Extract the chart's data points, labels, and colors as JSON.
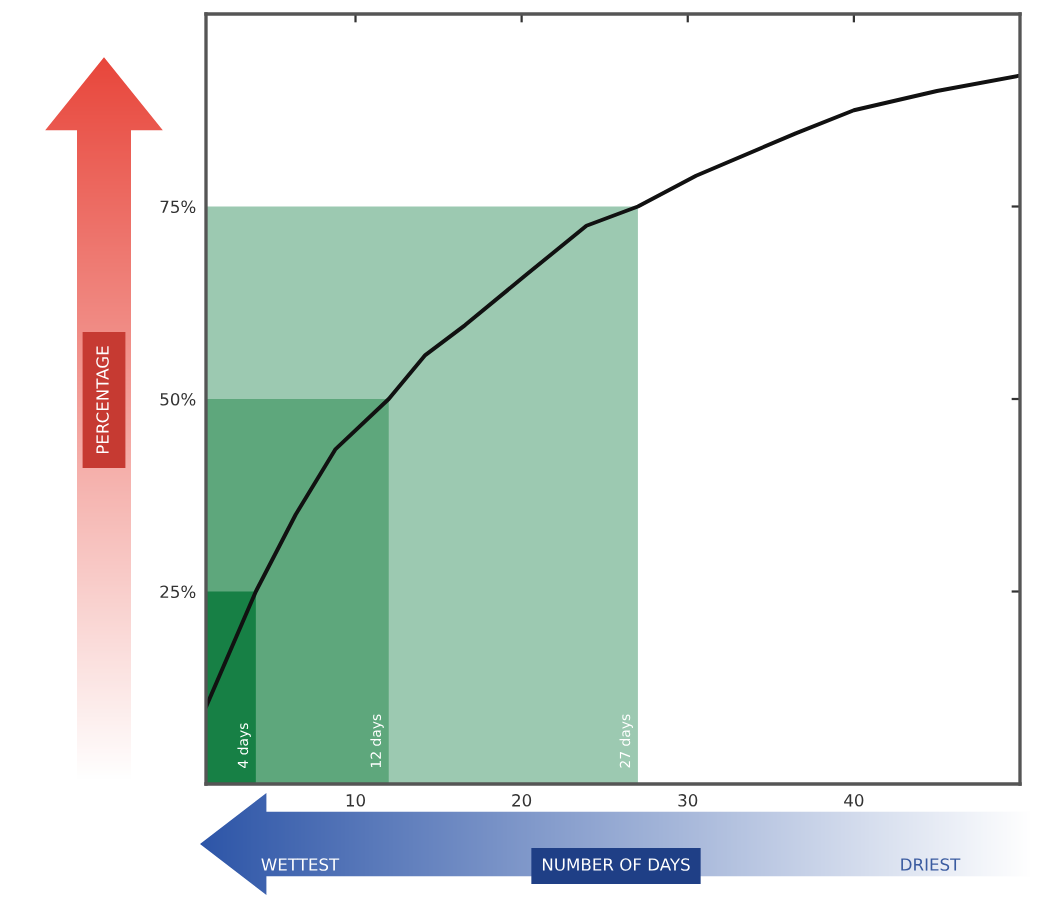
{
  "chart_data": {
    "type": "line",
    "xlabel": "NUMBER OF DAYS",
    "ylabel": "PERCENTAGE",
    "series": [
      {
        "color": "#111111",
        "x": [
          1,
          4,
          6.4,
          8.8,
          12,
          14.2,
          16.6,
          20.2,
          23.9,
          27,
          30.5,
          36.5,
          40,
          45,
          50
        ],
        "values": [
          10,
          25,
          35,
          43.5,
          50,
          55.7,
          59.6,
          66,
          72.5,
          75,
          79,
          84.5,
          87.5,
          90,
          92
        ]
      }
    ],
    "bands": [
      {
        "axis": "x",
        "from": 1,
        "to": 27,
        "label": "27 days",
        "color": "#9cc9b1"
      },
      {
        "axis": "x",
        "from": 1,
        "to": 12,
        "label": "12 days",
        "color": "#5ea77c"
      },
      {
        "axis": "x",
        "from": 1,
        "to": 4,
        "label": "4 days",
        "color": "#178045"
      }
    ],
    "annotations": [
      "WETTEST",
      "DRIEST"
    ],
    "xlim": [
      1,
      50
    ],
    "xticks": [
      10,
      20,
      30,
      40
    ],
    "ylim": [
      0,
      100
    ],
    "yticks": [
      {
        "value": 25,
        "label": "25%"
      },
      {
        "value": 50,
        "label": "50%"
      },
      {
        "value": 75,
        "label": "75%"
      }
    ],
    "grid": false,
    "legend": false,
    "marker": "none",
    "line_style": "solid"
  }
}
